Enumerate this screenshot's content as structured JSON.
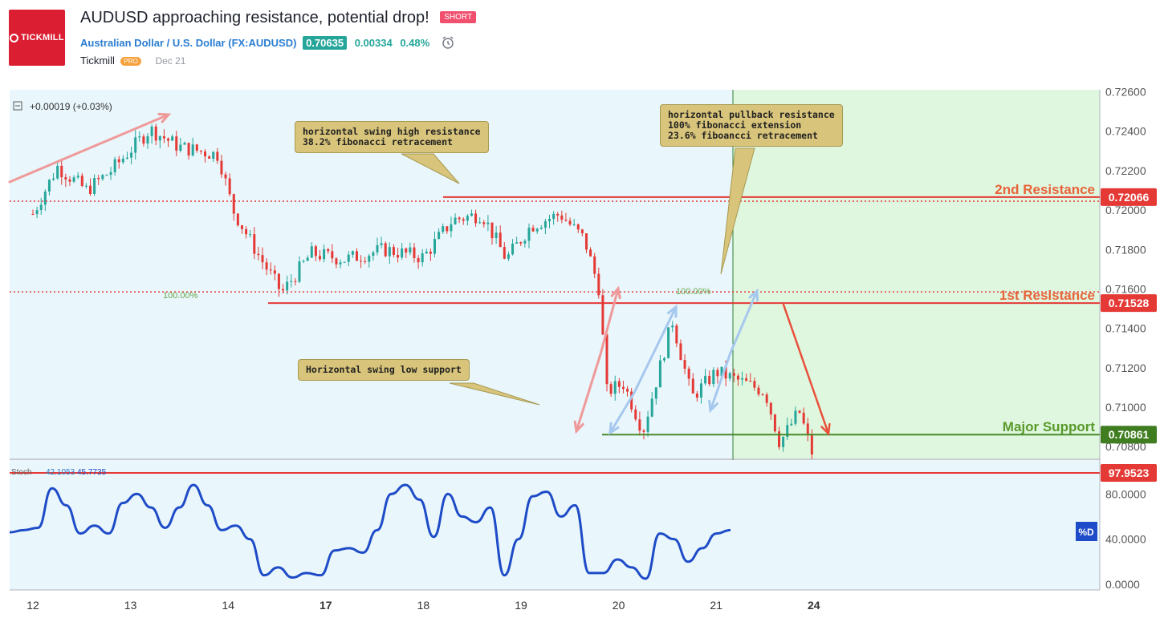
{
  "header": {
    "logo_text": "TICKMILL",
    "title": "AUDUSD approaching resistance, potential drop!",
    "side_badge": "SHORT",
    "symbol_name": "Australian Dollar / U.S. Dollar",
    "symbol_code": "(FX:AUDUSD)",
    "last_price": "0.70635",
    "change": "0.00334",
    "change_pct": "0.48%",
    "author": "Tickmill",
    "author_badge": "PRO",
    "date": "Dec 21"
  },
  "colors": {
    "up": "#26a69a",
    "down": "#e53935",
    "resistance": "#e53935",
    "support": "#4a8a2a",
    "stoch": "#1e4bc7",
    "chart_bg": "#e9f6fb",
    "zone_bg": "#dff7df"
  },
  "chart_data": {
    "type": "candlestick",
    "symbol": "AUDUSD",
    "legend": "+0.00019 (+0.03%)",
    "x_ticks": [
      "12",
      "13",
      "14",
      "17",
      "18",
      "19",
      "20",
      "21",
      "24"
    ],
    "price_ticks": [
      "0.72600",
      "0.72400",
      "0.72200",
      "0.72000",
      "0.71800",
      "0.71600",
      "0.71400",
      "0.71200",
      "0.71000",
      "0.70800"
    ],
    "ylim": [
      0.7074,
      0.7261
    ],
    "close_path": [
      {
        "x": 0.0,
        "y": 0.7198
      },
      {
        "x": 0.25,
        "y": 0.7222
      },
      {
        "x": 0.55,
        "y": 0.721
      },
      {
        "x": 0.8,
        "y": 0.722
      },
      {
        "x": 1.2,
        "y": 0.7241
      },
      {
        "x": 1.5,
        "y": 0.7232
      },
      {
        "x": 1.9,
        "y": 0.7228
      },
      {
        "x": 2.05,
        "y": 0.72
      },
      {
        "x": 2.3,
        "y": 0.7178
      },
      {
        "x": 2.55,
        "y": 0.7158
      },
      {
        "x": 2.85,
        "y": 0.7178
      },
      {
        "x": 3.2,
        "y": 0.7175
      },
      {
        "x": 3.6,
        "y": 0.718
      },
      {
        "x": 4.0,
        "y": 0.7176
      },
      {
        "x": 4.3,
        "y": 0.7195
      },
      {
        "x": 4.6,
        "y": 0.7198
      },
      {
        "x": 4.85,
        "y": 0.7175
      },
      {
        "x": 5.1,
        "y": 0.7192
      },
      {
        "x": 5.4,
        "y": 0.7198
      },
      {
        "x": 5.65,
        "y": 0.7185
      },
      {
        "x": 5.8,
        "y": 0.716
      },
      {
        "x": 5.88,
        "y": 0.7108
      },
      {
        "x": 6.05,
        "y": 0.7112
      },
      {
        "x": 6.25,
        "y": 0.7088
      },
      {
        "x": 6.55,
        "y": 0.7144
      },
      {
        "x": 6.75,
        "y": 0.7105
      },
      {
        "x": 7.0,
        "y": 0.7118
      },
      {
        "x": 7.3,
        "y": 0.7112
      },
      {
        "x": 7.5,
        "y": 0.7108
      },
      {
        "x": 7.65,
        "y": 0.7082
      },
      {
        "x": 7.85,
        "y": 0.7098
      },
      {
        "x": 8.0,
        "y": 0.7074
      }
    ],
    "levels": [
      {
        "label": "2nd Resistance",
        "price_label": "0.72066",
        "value": 0.72066
      },
      {
        "label": "1st Resistance",
        "price_label": "0.71528",
        "value": 0.71528
      },
      {
        "label": "Major Support",
        "price_label": "0.70861",
        "value": 0.70861
      }
    ],
    "fib_labels": [
      "100.00%",
      "100.00%"
    ],
    "annotations": [
      "horizontal swing high resistance\n38.2% fibonacci retracement",
      "horizontal pullback resistance\n100% fibonacci extension\n23.6% fiboancci retracement",
      "Horizontal swing low support"
    ],
    "stoch": {
      "label": "Stoch",
      "k_value": "42.1053",
      "d_value": "45.7735",
      "d_tag": "%D",
      "marker_label": "97.9523",
      "ticks": [
        "80.0000",
        "40.0000",
        "0.0000"
      ],
      "ylim": [
        -5,
        110
      ],
      "values": [
        46,
        48,
        50,
        85,
        70,
        45,
        52,
        45,
        72,
        80,
        68,
        50,
        68,
        88,
        70,
        48,
        52,
        40,
        8,
        15,
        6,
        10,
        8,
        30,
        32,
        28,
        48,
        80,
        88,
        75,
        42,
        80,
        60,
        55,
        68,
        8,
        40,
        78,
        82,
        60,
        70,
        10,
        10,
        22,
        15,
        5,
        45,
        40,
        20,
        32,
        45,
        48
      ]
    }
  }
}
